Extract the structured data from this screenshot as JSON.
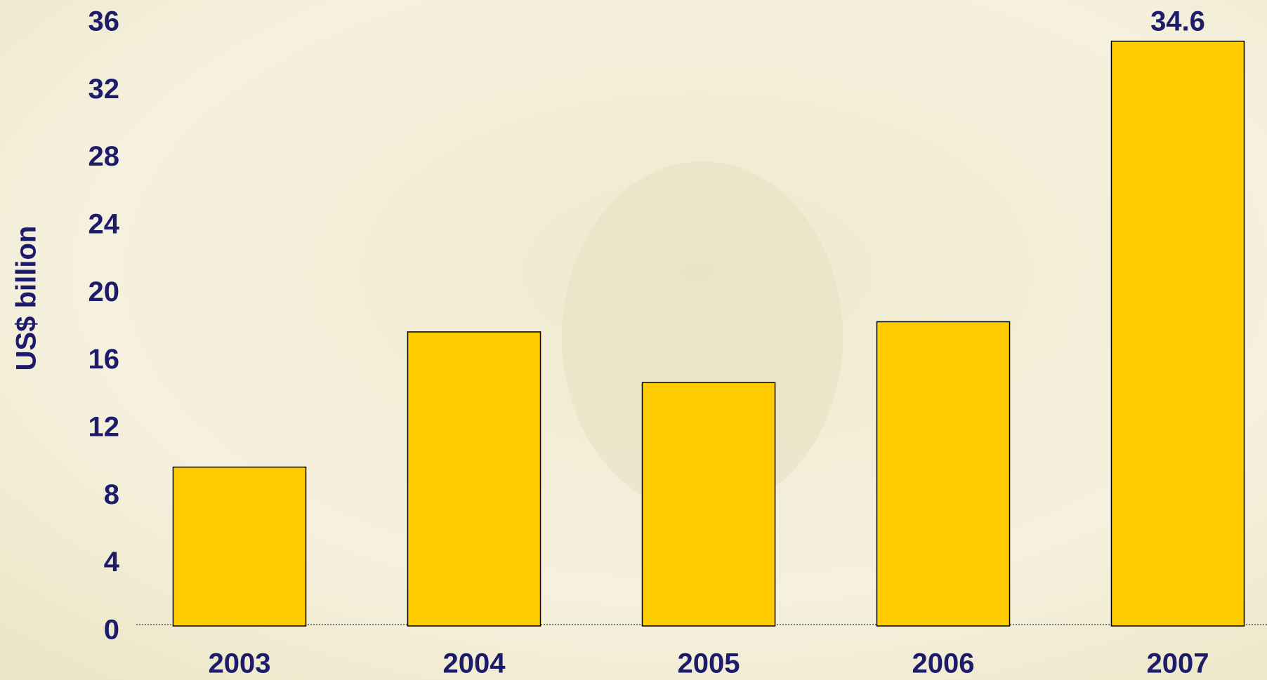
{
  "chart_data": {
    "type": "bar",
    "y_label": "US$ billion",
    "categories": [
      "2003",
      "2004",
      "2005",
      "2006",
      "2007"
    ],
    "values": [
      9.4,
      17.4,
      14.4,
      18.0,
      34.6
    ],
    "value_labels": [
      null,
      null,
      null,
      null,
      "34.6"
    ],
    "color": "#ffcc00",
    "ylim": [
      0,
      36
    ],
    "yticks": [
      0,
      4,
      8,
      12,
      16,
      20,
      24,
      28,
      32,
      36
    ],
    "grid": false
  }
}
